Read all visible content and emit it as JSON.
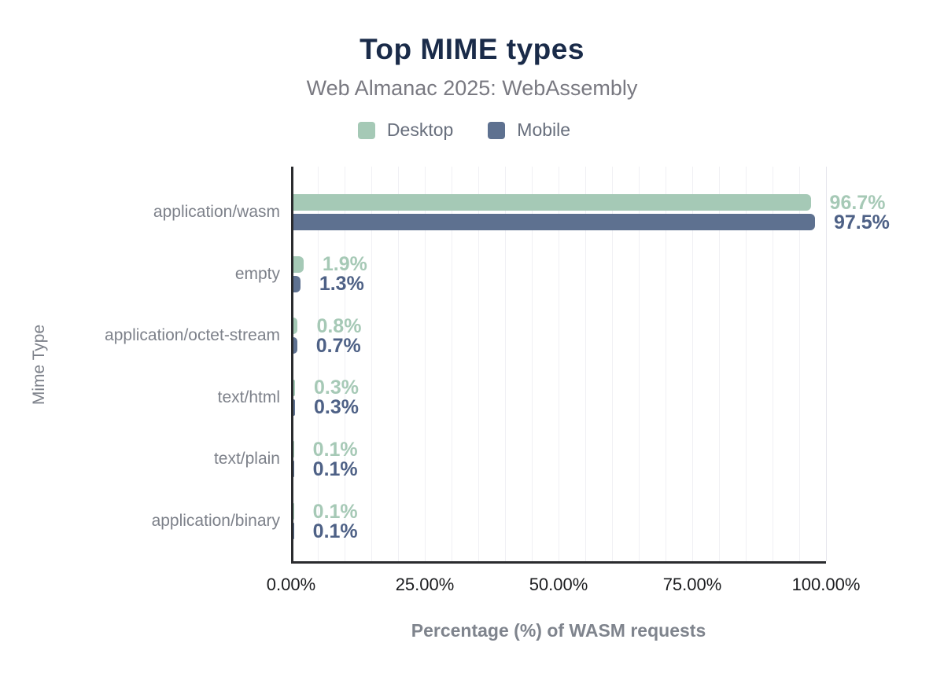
{
  "chart_data": {
    "type": "bar",
    "orientation": "horizontal",
    "title": "Top MIME types",
    "subtitle": "Web Almanac 2025: WebAssembly",
    "xlabel": "Percentage (%) of WASM requests",
    "ylabel": "Mime Type",
    "categories": [
      "application/wasm",
      "empty",
      "application/octet-stream",
      "text/html",
      "text/plain",
      "application/binary"
    ],
    "series": [
      {
        "name": "Desktop",
        "values": [
          96.7,
          1.9,
          0.8,
          0.3,
          0.1,
          0.1
        ],
        "labels": [
          "96.7%",
          "1.9%",
          "0.8%",
          "0.3%",
          "0.1%",
          "0.1%"
        ],
        "bar_color": "#a5c9b6",
        "label_color": "#a6c9b6"
      },
      {
        "name": "Mobile",
        "values": [
          97.5,
          1.3,
          0.7,
          0.3,
          0.1,
          0.1
        ],
        "labels": [
          "97.5%",
          "1.3%",
          "0.7%",
          "0.3%",
          "0.1%",
          "0.1%"
        ],
        "bar_color": "#5e7190",
        "label_color": "#4e6186"
      }
    ],
    "x_ticks": [
      "0.00%",
      "25.00%",
      "50.00%",
      "75.00%",
      "100.00%"
    ],
    "xlim": [
      0,
      100
    ],
    "grid": {
      "vertical_step_pct": 5,
      "color": "#f0f0f4",
      "last_line_color": "#e6e6ec"
    },
    "legend_position": "top"
  },
  "colors": {
    "title": "#1a2b49",
    "subtitle": "#797981",
    "legend_text": "#676e7c",
    "category_text": "#7d818a",
    "tick_text": "#1b1c1f",
    "axis_title_text": "#7f848d",
    "axis_line": "#2a2b2e",
    "background": "#ffffff"
  }
}
